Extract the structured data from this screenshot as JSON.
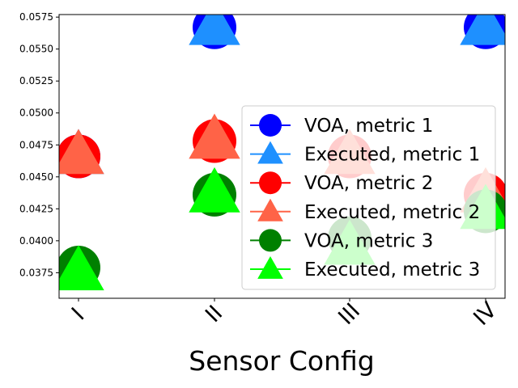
{
  "chart_data": {
    "type": "scatter",
    "categories": [
      "I",
      "II",
      "III",
      "IV"
    ],
    "xlabel": "Sensor Config",
    "ylabel": "",
    "title": "",
    "ylim": [
      0.0355,
      0.0577
    ],
    "yticks": [
      "0.0375",
      "0.0400",
      "0.0425",
      "0.0450",
      "0.0475",
      "0.0500",
      "0.0525",
      "0.0550",
      "0.0575"
    ],
    "grid": false,
    "legend_position": "right",
    "series": [
      {
        "name": "VOA, metric 1",
        "marker": "circle",
        "color": "#0000ff",
        "values": [
          0.0466,
          0.0567,
          null,
          0.0567
        ]
      },
      {
        "name": "Executed, metric 1",
        "marker": "triangle",
        "color": "#1e90ff",
        "values": [
          0.0466,
          0.0567,
          null,
          0.0567
        ]
      },
      {
        "name": "VOA, metric 2",
        "marker": "circle",
        "color": "#ff0000",
        "values": [
          0.0466,
          0.0478,
          0.0466,
          0.0436
        ]
      },
      {
        "name": "Executed, metric 2",
        "marker": "triangle",
        "color": "#ff6347",
        "values": [
          0.0466,
          0.0478,
          0.0466,
          0.0436
        ]
      },
      {
        "name": "VOA, metric 3",
        "marker": "circle",
        "color": "#008000",
        "values": [
          0.0379,
          0.0436,
          0.0402,
          0.0423
        ]
      },
      {
        "name": "Executed, metric 3",
        "marker": "triangle",
        "color": "#00ff00",
        "values": [
          0.0375,
          0.0436,
          0.0395,
          0.0423
        ]
      }
    ]
  }
}
